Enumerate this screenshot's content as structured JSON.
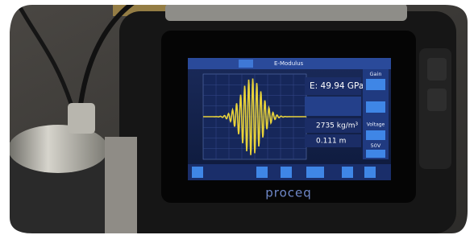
{
  "screen": {
    "mode": "E-Modulus",
    "result": "E: 49.94 GPa",
    "density": "2735 kg/m³",
    "distance": "0.111 m",
    "gain_label": "Gain",
    "voltage_label": "Voltage",
    "voltage_value": "50V"
  },
  "device": {
    "brand": "proceq"
  }
}
